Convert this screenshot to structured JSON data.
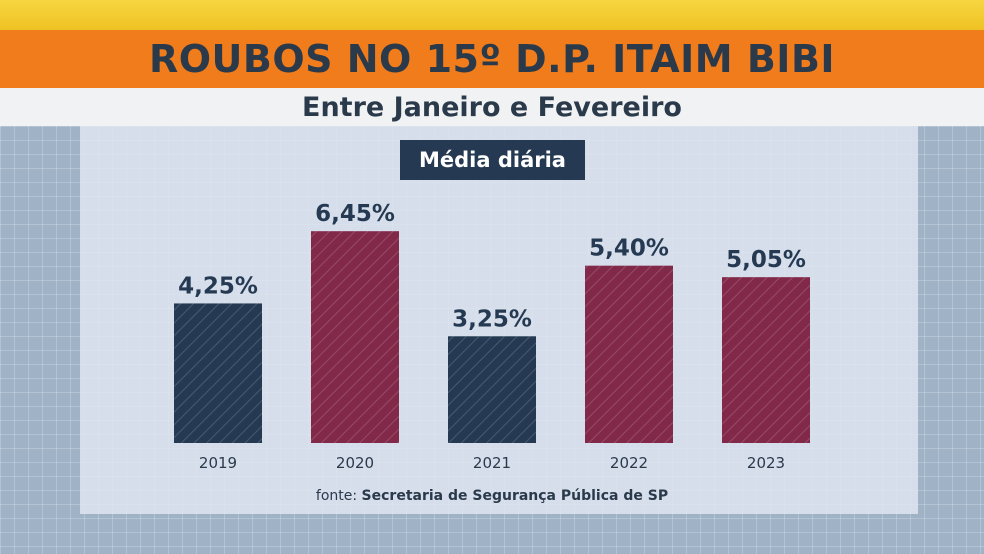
{
  "header": {
    "title": "ROUBOS NO 15º D.P. ITAIM BIBI",
    "subtitle": "Entre Janeiro e Fevereiro",
    "badge": "Média diária"
  },
  "source": {
    "prefix": "fonte:",
    "name": "Secretaria de Segurança Pública de SP"
  },
  "colors": {
    "navy": "#253a52",
    "maroon": "#82294a",
    "orange": "#f07c1c",
    "yellow": "#f2cb2e"
  },
  "chart_data": {
    "type": "bar",
    "title": "Média diária",
    "categories": [
      "2019",
      "2020",
      "2021",
      "2022",
      "2023"
    ],
    "values": [
      4.25,
      6.45,
      3.25,
      5.4,
      5.05
    ],
    "value_labels": [
      "4,25%",
      "6,45%",
      "3,25%",
      "5,40%",
      "5,05%"
    ],
    "bar_colors": [
      "#253a52",
      "#82294a",
      "#253a52",
      "#82294a",
      "#82294a"
    ],
    "ylim": [
      0,
      7.4
    ],
    "grid": false,
    "legend": "none"
  }
}
